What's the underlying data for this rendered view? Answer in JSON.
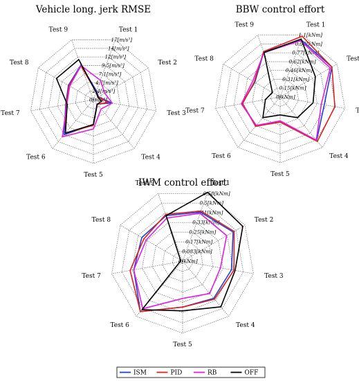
{
  "chart_data": [
    {
      "type": "radar",
      "title": "Vehicle long. jerk RMSE",
      "axes": [
        "Test 1",
        "Test 2",
        "Test 3",
        "Test 4",
        "Test 5",
        "Test 6",
        "Test 7",
        "Test 8",
        "Test 9"
      ],
      "ticks": [
        "0[m/s³]",
        "2.4[m/s³]",
        "4.7[m/s³]",
        "7.1[m/s³]",
        "9.5[m/s³]",
        "12[m/s³]",
        "14[m/s³]",
        "17[m/s³]"
      ],
      "rmax": 17,
      "series": [
        {
          "name": "ISM",
          "color": "#1f3fd6",
          "values": [
            2.5,
            1.6,
            5.0,
            1.5,
            6.6,
            12.2,
            7.5,
            7.7,
            9.8
          ]
        },
        {
          "name": "PID",
          "color": "#e02020",
          "values": [
            2.2,
            1.5,
            4.0,
            1.6,
            6.8,
            11.6,
            7.4,
            7.5,
            9.6
          ]
        },
        {
          "name": "RB",
          "color": "#e020e0",
          "values": [
            5.5,
            3.5,
            5.1,
            3.2,
            7.8,
            12.9,
            7.2,
            7.3,
            9.7
          ]
        },
        {
          "name": "OFF",
          "color": "#000000",
          "values": [
            2.1,
            1.4,
            2.2,
            1.6,
            6.6,
            11.6,
            7.1,
            11.4,
            11.4
          ]
        }
      ]
    },
    {
      "type": "radar",
      "title": "BBW control effort",
      "axes": [
        "Test 1",
        "Test 2",
        "Test 3",
        "Test 4",
        "Test 5",
        "Test 6",
        "Test 7",
        "Test 8",
        "Test 9"
      ],
      "ticks": [
        "0[kNm]",
        "0.15[kNm]",
        "0.31[kNm]",
        "0.46[kNm]",
        "0.62[kNm]",
        "0.77[kNm]",
        "0.93[kNm]",
        "1.1[kNm]"
      ],
      "rmax": 1.1,
      "series": [
        {
          "name": "ISM",
          "color": "#1f3fd6",
          "values": [
            1.02,
            1.0,
            0.75,
            0.95,
            0.4,
            0.63,
            0.65,
            0.49,
            0.8
          ]
        },
        {
          "name": "PID",
          "color": "#e02020",
          "values": [
            1.08,
            1.0,
            0.93,
            0.97,
            0.42,
            0.64,
            0.64,
            0.5,
            0.81
          ]
        },
        {
          "name": "RB",
          "color": "#e020e0",
          "values": [
            1.0,
            0.97,
            0.7,
            0.94,
            0.4,
            0.62,
            0.66,
            0.53,
            0.79
          ]
        },
        {
          "name": "OFF",
          "color": "#000000",
          "values": [
            1.03,
            0.68,
            0.56,
            0.45,
            0.3,
            0.45,
            0.25,
            0.15,
            0.79
          ]
        }
      ]
    },
    {
      "type": "radar",
      "title": "IWM control effort",
      "axes": [
        "Test 1",
        "Test 2",
        "Test 3",
        "Test 4",
        "Test 5",
        "Test 6",
        "Test 7",
        "Test 8",
        "Test 9"
      ],
      "ticks": [
        "0[kNm]",
        "0.083[kNm]",
        "0.17[kNm]",
        "0.25[kNm]",
        "0.33[kNm]",
        "0.41[kNm]",
        "0.5[kNm]",
        "0.58[kNm]"
      ],
      "rmax": 0.58,
      "series": [
        {
          "name": "ISM",
          "color": "#1f3fd6",
          "values": [
            0.42,
            0.47,
            0.4,
            0.39,
            0.37,
            0.53,
            0.4,
            0.38,
            0.39
          ]
        },
        {
          "name": "PID",
          "color": "#e02020",
          "values": [
            0.43,
            0.48,
            0.42,
            0.4,
            0.37,
            0.53,
            0.43,
            0.36,
            0.4
          ]
        },
        {
          "name": "RB",
          "color": "#e020e0",
          "values": [
            0.41,
            0.41,
            0.31,
            0.34,
            0.3,
            0.5,
            0.4,
            0.34,
            0.37
          ]
        },
        {
          "name": "OFF",
          "color": "#000000",
          "values": [
            0.59,
            0.56,
            0.43,
            0.48,
            0.4,
            0.51,
            0.02,
            0.02,
            0.39
          ]
        }
      ]
    }
  ],
  "legend": [
    {
      "name": "ISM",
      "color": "#1f3fd6"
    },
    {
      "name": "PID",
      "color": "#e02020"
    },
    {
      "name": "RB",
      "color": "#e020e0"
    },
    {
      "name": "OFF",
      "color": "#000000"
    }
  ]
}
